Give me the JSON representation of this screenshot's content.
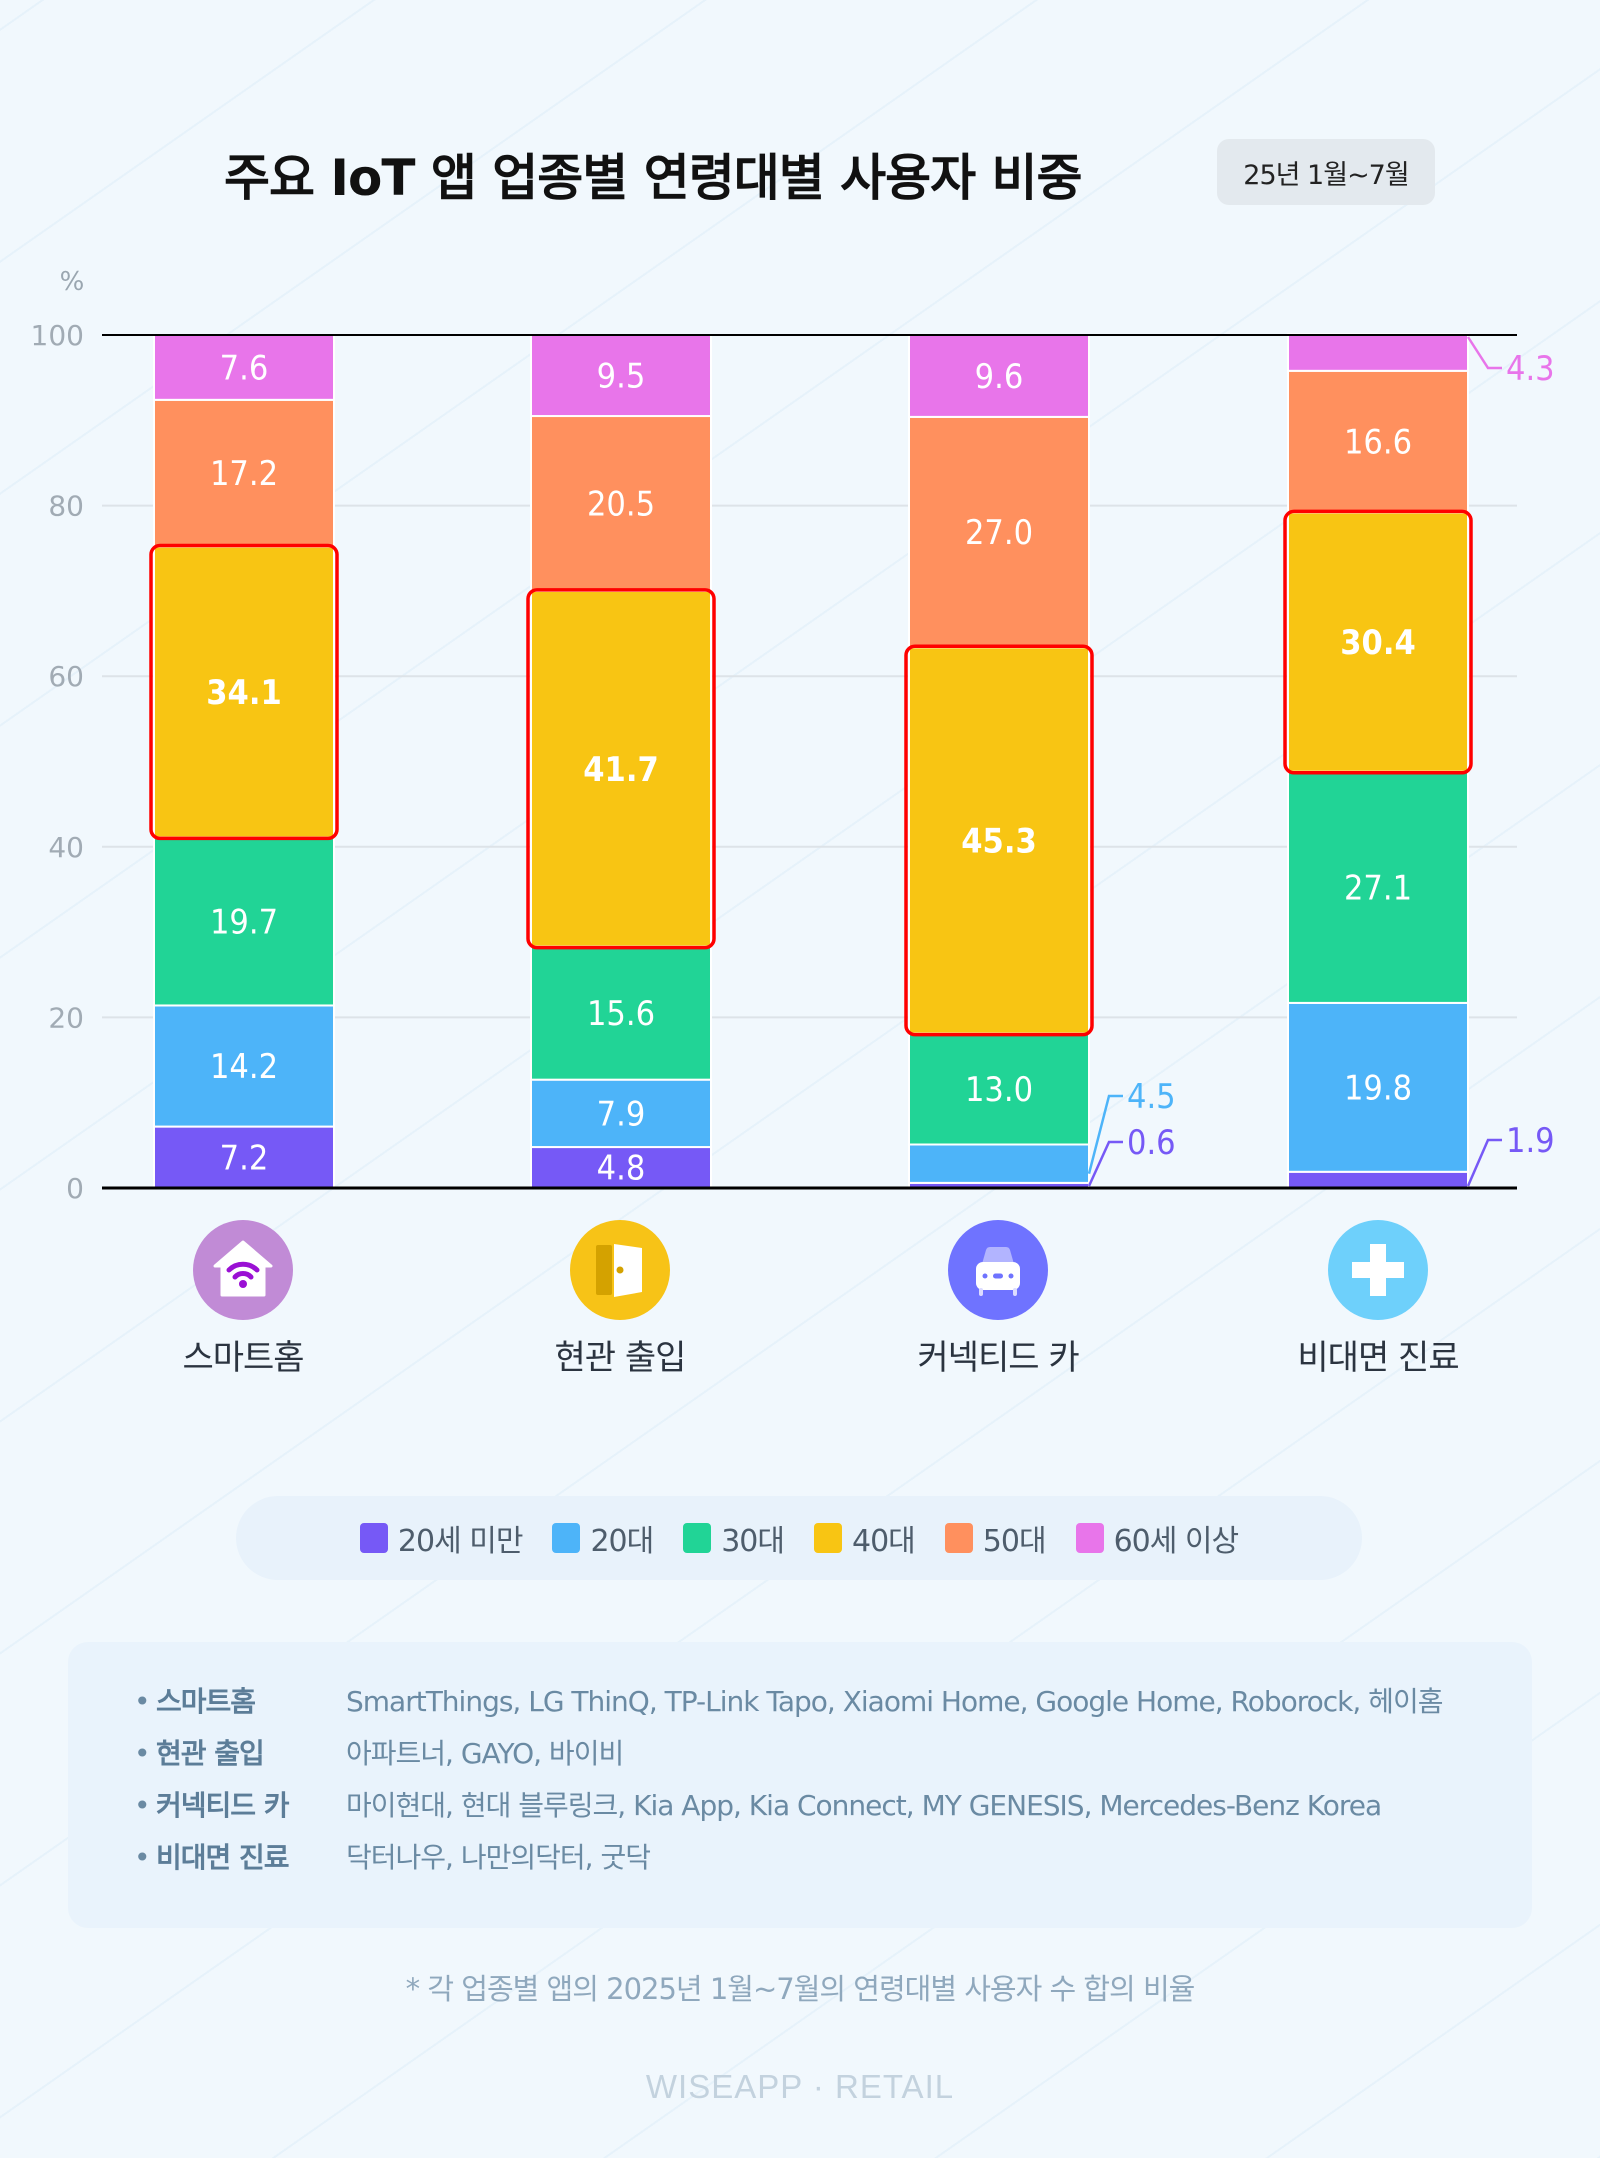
{
  "header": {
    "title": "주요 IoT 앱 업종별 연령대별 사용자 비중",
    "period_badge": "25년 1월~7월"
  },
  "chart_data": {
    "type": "bar",
    "stacked": true,
    "title": "주요 IoT 앱 업종별 연령대별 사용자 비중",
    "ylabel": "%",
    "ylim": [
      0,
      100
    ],
    "yticks": [
      0,
      20,
      40,
      60,
      80,
      100
    ],
    "grid": true,
    "legend_position": "bottom",
    "highlight_series": "40대",
    "highlight_color": "#ff0000",
    "categories": [
      "스마트홈",
      "현관 출입",
      "커넥티드 카",
      "비대면 진료"
    ],
    "category_icons": [
      "smart-home-icon",
      "door-icon",
      "car-icon",
      "medical-cross-icon"
    ],
    "category_icon_colors": [
      "#c18bd6",
      "#f7c317",
      "#6f73ff",
      "#6ed0fb"
    ],
    "series": [
      {
        "name": "20세 미만",
        "color": "#7659f6",
        "values": [
          7.2,
          4.8,
          0.6,
          1.9
        ]
      },
      {
        "name": "20대",
        "color": "#4db4f9",
        "values": [
          14.2,
          7.9,
          4.5,
          19.8
        ]
      },
      {
        "name": "30대",
        "color": "#21d496",
        "values": [
          19.7,
          15.6,
          13.0,
          27.1
        ]
      },
      {
        "name": "40대",
        "color": "#f8c513",
        "values": [
          34.1,
          41.7,
          45.3,
          30.4
        ]
      },
      {
        "name": "50대",
        "color": "#ff905e",
        "values": [
          17.2,
          20.5,
          27.0,
          16.6
        ]
      },
      {
        "name": "60세 이상",
        "color": "#e875ea",
        "values": [
          7.6,
          9.5,
          9.6,
          4.3
        ]
      }
    ],
    "value_labels": [
      [
        "7.2",
        "14.2",
        "19.7",
        "34.1",
        "17.2",
        "7.6"
      ],
      [
        "4.8",
        "7.9",
        "15.6",
        "41.7",
        "20.5",
        "9.5"
      ],
      [
        "0.6",
        "4.5",
        "13.0",
        "45.3",
        "27.0",
        "9.6"
      ],
      [
        "1.9",
        "19.8",
        "27.1",
        "30.4",
        "16.6",
        "4.3"
      ]
    ]
  },
  "legend": {
    "items": [
      {
        "label": "20세 미만",
        "color": "#7659f6"
      },
      {
        "label": "20대",
        "color": "#4db4f9"
      },
      {
        "label": "30대",
        "color": "#21d496"
      },
      {
        "label": "40대",
        "color": "#f8c513"
      },
      {
        "label": "50대",
        "color": "#ff905e"
      },
      {
        "label": "60세 이상",
        "color": "#e875ea"
      }
    ]
  },
  "apps": [
    {
      "category": "스마트홈",
      "list": "SmartThings, LG ThinQ, TP-Link Tapo, Xiaomi Home, Google Home, Roborock, 헤이홈"
    },
    {
      "category": "현관 출입",
      "list": "아파트너, GAYO, 바이비"
    },
    {
      "category": "커넥티드 카",
      "list": "마이현대, 현대 블루링크, Kia App, Kia Connect, MY GENESIS, Mercedes-Benz Korea"
    },
    {
      "category": "비대면 진료",
      "list": "닥터나우, 나만의닥터, 굿닥"
    }
  ],
  "footnote": "* 각 업종별 앱의 2025년 1월~7월의 연령대별 사용자 수 합의 비율",
  "brand": "WISEAPP · RETAIL",
  "watermark": "WISEAPP · RETAIL"
}
